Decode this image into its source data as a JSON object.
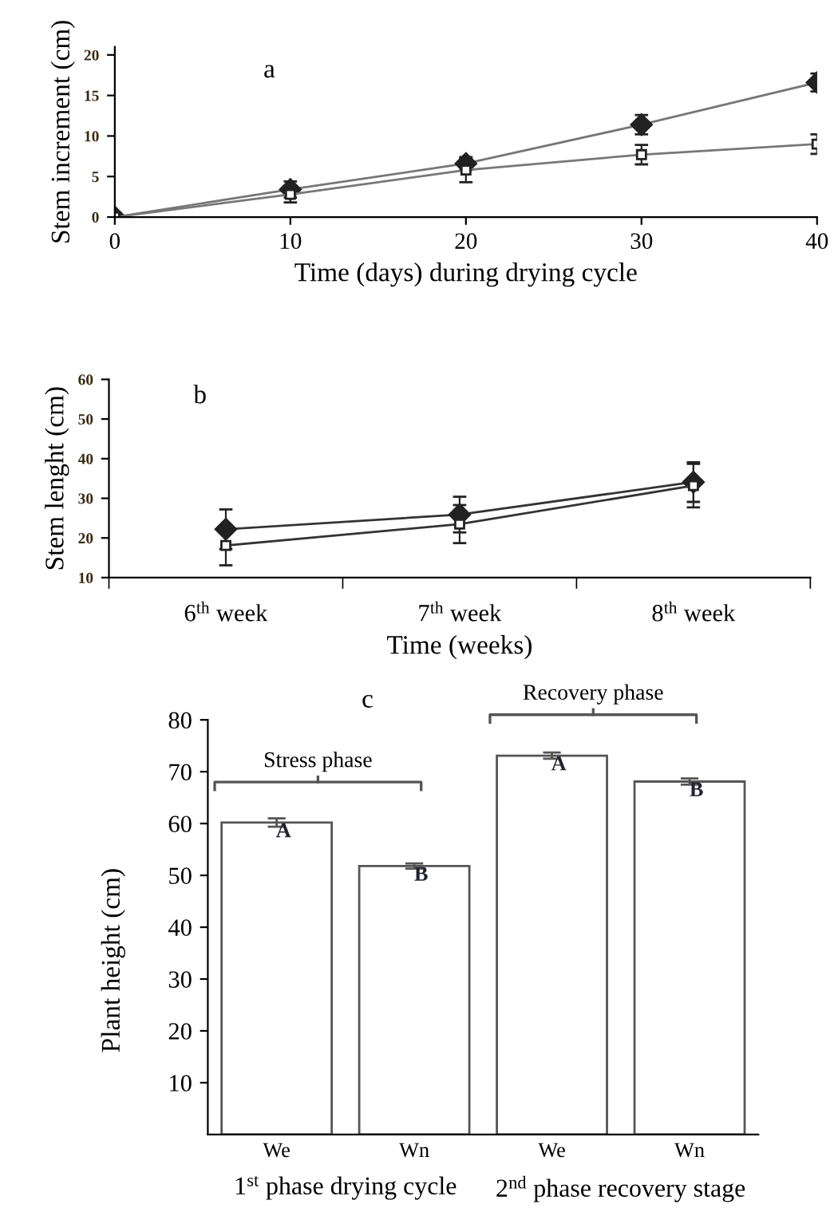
{
  "chart_data": [
    {
      "type": "line",
      "title": "a",
      "xlabel": "Time (days) during drying cycle",
      "ylabel": "Stem increment (cm)",
      "x": [
        0,
        10,
        20,
        30,
        40
      ],
      "xlim": [
        0,
        40
      ],
      "xticks": [
        0,
        10,
        20,
        30,
        40
      ],
      "ylim": [
        0,
        21
      ],
      "yticks": [
        0,
        5,
        10,
        15,
        20
      ],
      "grid": false,
      "legend": false,
      "series": [
        {
          "color": "#777777",
          "marker": "diamond",
          "values": [
            0,
            3.4,
            6.6,
            11.4,
            16.6
          ],
          "errors": [
            0.5,
            1.0,
            0.8,
            1.2,
            1.1
          ]
        },
        {
          "color": "#777777",
          "marker": "square",
          "values": [
            0,
            2.8,
            5.8,
            7.7,
            9.0
          ],
          "errors": [
            0.5,
            1.0,
            1.5,
            1.2,
            1.2
          ]
        }
      ]
    },
    {
      "type": "line",
      "title": "b",
      "xlabel": "Time (weeks)",
      "ylabel": "Stem lenght (cm)",
      "categories": [
        "6$^{th}$ week",
        "7$^{th}$ week",
        "8$^{th}$ week"
      ],
      "ylim": [
        10,
        60
      ],
      "yticks": [
        10,
        20,
        30,
        40,
        50,
        60
      ],
      "grid": false,
      "legend": false,
      "series": [
        {
          "color": "#333333",
          "marker": "diamond",
          "values": [
            22.2,
            25.9,
            34.1
          ],
          "errors": [
            5.0,
            4.5,
            5.0
          ]
        },
        {
          "color": "#333333",
          "marker": "square",
          "values": [
            18.1,
            23.5,
            33.2
          ],
          "errors": [
            5.0,
            4.8,
            5.5
          ]
        }
      ]
    },
    {
      "type": "bar",
      "title": "c",
      "ylabel": "Plant height (cm)",
      "categories": [
        "We",
        "Wn",
        "We",
        "Wn"
      ],
      "values": [
        60.2,
        51.8,
        73.1,
        68.1
      ],
      "errors": [
        0.8,
        0.5,
        0.6,
        0.6
      ],
      "color": "#ffffff",
      "ylim": [
        0,
        80
      ],
      "yticks": [
        10,
        20,
        30,
        40,
        50,
        60,
        70,
        80
      ],
      "grid": false,
      "legend": false,
      "annotations": [
        "A",
        "B",
        "A",
        "B",
        "Stress phase",
        "Recovery phase",
        "1$^{st}$ phase drying cycle",
        "2$^{nd}$ phase recovery stage"
      ]
    }
  ]
}
